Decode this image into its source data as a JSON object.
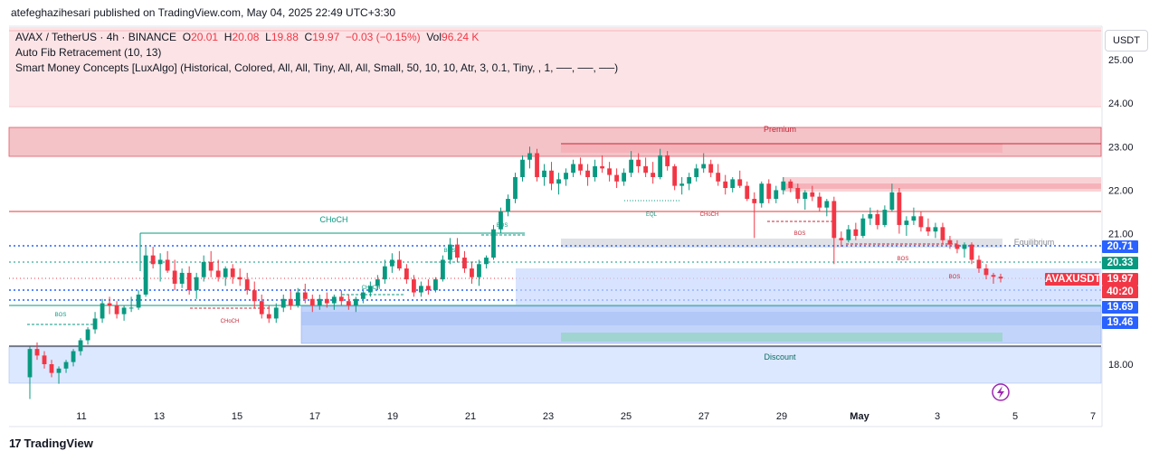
{
  "header": {
    "published": "atefeghazihesari published on TradingView.com, May 04, 2025 22:49 UTC+3:30"
  },
  "legend": {
    "symbol": "AVAX / TetherUS · 4h · BINANCE",
    "open_label": "O",
    "open": "20.01",
    "high_label": "H",
    "high": "20.08",
    "low_label": "L",
    "low": "19.88",
    "close_label": "C",
    "close": "19.97",
    "change": "−0.03 (−0.15%)",
    "vol_label": "Vol",
    "vol": "96.24 K",
    "indicator1": "Auto Fib Retracement (10, 13)",
    "indicator2": "Smart Money Concepts [LuxAlgo] (Historical, Colored, All, All, Tiny, All, All, Small, 50, 10, 10, Atr, 3, 0.1, Tiny, , 1, ──, ──, ──)"
  },
  "currency_button": "USDT",
  "footer": {
    "logo": "17",
    "brand": "TradingView"
  },
  "colors": {
    "up": "#089981",
    "down": "#f23645",
    "blue": "#2962ff",
    "teal": "#089981"
  },
  "price_tags": [
    {
      "text": "20.71",
      "color": "#2962ff"
    },
    {
      "text": "20.33",
      "color": "#089981"
    },
    {
      "text": "AVAXUSDT",
      "color": "#f23645"
    },
    {
      "text": "19.97",
      "color": "#f23645"
    },
    {
      "text": "40:20",
      "color": "#f23645"
    },
    {
      "text": "19.69",
      "color": "#2962ff"
    },
    {
      "text": "19.46",
      "color": "#2962ff"
    }
  ],
  "chart_data": {
    "type": "candlestick",
    "title": "AVAX / TetherUS · 4h · BINANCE",
    "ylim": [
      17.0,
      25.5
    ],
    "y_ticks": [
      "25.00",
      "24.00",
      "23.00",
      "22.00",
      "21.00",
      "18.00"
    ],
    "x_tick_labels": [
      "11",
      "13",
      "15",
      "17",
      "19",
      "21",
      "23",
      "25",
      "27",
      "29",
      "May",
      "3",
      "5",
      "7"
    ],
    "candles_ohlc": [
      [
        17.7,
        18.4,
        17.2,
        18.35
      ],
      [
        18.35,
        18.5,
        18.1,
        18.2
      ],
      [
        18.2,
        18.3,
        17.9,
        18.0
      ],
      [
        18.0,
        18.1,
        17.7,
        17.8
      ],
      [
        17.8,
        17.95,
        17.55,
        17.9
      ],
      [
        17.9,
        18.1,
        17.8,
        18.05
      ],
      [
        18.05,
        18.35,
        17.95,
        18.3
      ],
      [
        18.3,
        18.6,
        18.2,
        18.55
      ],
      [
        18.55,
        18.85,
        18.45,
        18.8
      ],
      [
        18.8,
        19.2,
        18.7,
        19.05
      ],
      [
        19.05,
        19.5,
        18.95,
        19.4
      ],
      [
        19.4,
        19.55,
        19.15,
        19.35
      ],
      [
        19.35,
        19.45,
        19.05,
        19.15
      ],
      [
        19.15,
        19.35,
        19.0,
        19.3
      ],
      [
        19.3,
        19.55,
        19.2,
        19.3
      ],
      [
        19.3,
        19.7,
        19.25,
        19.6
      ],
      [
        19.6,
        20.7,
        19.55,
        20.5
      ],
      [
        20.5,
        20.7,
        20.2,
        20.3
      ],
      [
        20.3,
        20.55,
        19.9,
        20.4
      ],
      [
        20.4,
        20.6,
        20.1,
        20.15
      ],
      [
        20.15,
        20.4,
        19.7,
        19.85
      ],
      [
        19.85,
        20.2,
        19.75,
        20.1
      ],
      [
        20.1,
        20.25,
        19.6,
        19.7
      ],
      [
        19.7,
        20.1,
        19.5,
        20.0
      ],
      [
        20.0,
        20.5,
        19.9,
        20.35
      ],
      [
        20.35,
        20.6,
        20.0,
        20.15
      ],
      [
        20.15,
        20.4,
        19.9,
        20.0
      ],
      [
        20.0,
        20.25,
        19.8,
        20.2
      ],
      [
        20.2,
        20.3,
        19.85,
        20.0
      ],
      [
        20.0,
        20.2,
        19.8,
        19.95
      ],
      [
        19.95,
        20.1,
        19.6,
        19.7
      ],
      [
        19.7,
        19.9,
        19.3,
        19.45
      ],
      [
        19.45,
        19.6,
        19.05,
        19.15
      ],
      [
        19.15,
        19.35,
        18.95,
        19.05
      ],
      [
        19.05,
        19.4,
        18.95,
        19.3
      ],
      [
        19.3,
        19.6,
        19.2,
        19.5
      ],
      [
        19.5,
        19.7,
        19.25,
        19.35
      ],
      [
        19.35,
        19.75,
        19.3,
        19.65
      ],
      [
        19.65,
        19.85,
        19.4,
        19.5
      ],
      [
        19.5,
        19.6,
        19.2,
        19.35
      ],
      [
        19.35,
        19.6,
        19.25,
        19.5
      ],
      [
        19.5,
        19.65,
        19.3,
        19.4
      ],
      [
        19.4,
        19.6,
        19.25,
        19.55
      ],
      [
        19.55,
        19.7,
        19.35,
        19.45
      ],
      [
        19.45,
        19.6,
        19.25,
        19.35
      ],
      [
        19.35,
        19.55,
        19.2,
        19.5
      ],
      [
        19.5,
        19.7,
        19.4,
        19.65
      ],
      [
        19.65,
        19.9,
        19.55,
        19.8
      ],
      [
        19.8,
        20.05,
        19.7,
        19.95
      ],
      [
        19.95,
        20.4,
        19.85,
        20.25
      ],
      [
        20.25,
        20.55,
        20.1,
        20.4
      ],
      [
        20.4,
        20.6,
        20.15,
        20.2
      ],
      [
        20.2,
        20.3,
        19.85,
        19.95
      ],
      [
        19.95,
        20.05,
        19.55,
        19.65
      ],
      [
        19.65,
        19.9,
        19.55,
        19.8
      ],
      [
        19.8,
        19.95,
        19.6,
        19.7
      ],
      [
        19.7,
        20.0,
        19.65,
        19.95
      ],
      [
        19.95,
        20.5,
        19.9,
        20.4
      ],
      [
        20.4,
        20.9,
        20.3,
        20.75
      ],
      [
        20.75,
        20.9,
        20.35,
        20.45
      ],
      [
        20.45,
        20.6,
        20.1,
        20.2
      ],
      [
        20.2,
        20.35,
        19.85,
        20.0
      ],
      [
        20.0,
        20.4,
        19.8,
        20.3
      ],
      [
        20.3,
        20.5,
        20.2,
        20.45
      ],
      [
        20.45,
        21.2,
        20.4,
        21.1
      ],
      [
        21.1,
        21.6,
        21.0,
        21.5
      ],
      [
        21.5,
        21.9,
        21.4,
        21.8
      ],
      [
        21.8,
        22.4,
        21.7,
        22.3
      ],
      [
        22.3,
        22.8,
        22.2,
        22.7
      ],
      [
        22.7,
        23.0,
        22.5,
        22.85
      ],
      [
        22.85,
        22.95,
        22.2,
        22.3
      ],
      [
        22.3,
        22.6,
        22.1,
        22.45
      ],
      [
        22.45,
        22.65,
        22.0,
        22.15
      ],
      [
        22.15,
        22.4,
        21.9,
        22.25
      ],
      [
        22.25,
        22.5,
        22.1,
        22.4
      ],
      [
        22.4,
        22.7,
        22.3,
        22.6
      ],
      [
        22.6,
        22.75,
        22.35,
        22.45
      ],
      [
        22.45,
        22.6,
        22.1,
        22.3
      ],
      [
        22.3,
        22.7,
        22.2,
        22.55
      ],
      [
        22.55,
        22.8,
        22.4,
        22.5
      ],
      [
        22.5,
        22.65,
        22.2,
        22.35
      ],
      [
        22.35,
        22.5,
        22.05,
        22.2
      ],
      [
        22.2,
        22.5,
        22.1,
        22.4
      ],
      [
        22.4,
        22.9,
        22.3,
        22.7
      ],
      [
        22.7,
        22.85,
        22.4,
        22.55
      ],
      [
        22.55,
        22.75,
        22.3,
        22.4
      ],
      [
        22.4,
        22.65,
        22.15,
        22.3
      ],
      [
        22.3,
        22.95,
        22.25,
        22.8
      ],
      [
        22.8,
        22.9,
        22.45,
        22.55
      ],
      [
        22.55,
        22.6,
        22.0,
        22.1
      ],
      [
        22.1,
        22.3,
        21.9,
        22.15
      ],
      [
        22.15,
        22.4,
        22.0,
        22.3
      ],
      [
        22.3,
        22.6,
        22.2,
        22.5
      ],
      [
        22.5,
        22.85,
        22.4,
        22.6
      ],
      [
        22.6,
        22.7,
        22.3,
        22.4
      ],
      [
        22.4,
        22.6,
        22.1,
        22.2
      ],
      [
        22.2,
        22.35,
        21.9,
        22.05
      ],
      [
        22.05,
        22.3,
        21.95,
        22.25
      ],
      [
        22.25,
        22.45,
        22.05,
        22.1
      ],
      [
        22.1,
        22.2,
        21.75,
        21.8
      ],
      [
        21.8,
        21.95,
        20.9,
        21.7
      ],
      [
        21.7,
        22.2,
        21.6,
        22.15
      ],
      [
        22.15,
        22.25,
        21.7,
        21.8
      ],
      [
        21.8,
        22.1,
        21.7,
        22.0
      ],
      [
        22.0,
        22.3,
        21.9,
        22.2
      ],
      [
        22.2,
        22.25,
        21.95,
        22.05
      ],
      [
        22.05,
        22.15,
        21.7,
        21.8
      ],
      [
        21.8,
        22.0,
        21.55,
        21.95
      ],
      [
        21.95,
        22.1,
        21.75,
        21.85
      ],
      [
        21.85,
        21.95,
        21.5,
        21.6
      ],
      [
        21.6,
        21.8,
        21.4,
        21.75
      ],
      [
        21.75,
        21.85,
        20.3,
        20.9
      ],
      [
        20.9,
        21.05,
        20.7,
        20.85
      ],
      [
        20.85,
        21.2,
        20.8,
        21.1
      ],
      [
        21.1,
        21.25,
        20.85,
        20.95
      ],
      [
        20.95,
        21.45,
        20.9,
        21.35
      ],
      [
        21.35,
        21.6,
        21.2,
        21.45
      ],
      [
        21.45,
        21.55,
        21.1,
        21.2
      ],
      [
        21.2,
        21.65,
        21.15,
        21.55
      ],
      [
        21.55,
        22.15,
        21.5,
        21.95
      ],
      [
        21.95,
        22.05,
        21.0,
        21.2
      ],
      [
        21.2,
        21.4,
        20.95,
        21.3
      ],
      [
        21.3,
        21.6,
        21.2,
        21.4
      ],
      [
        21.4,
        21.5,
        21.05,
        21.15
      ],
      [
        21.15,
        21.35,
        20.95,
        21.05
      ],
      [
        21.05,
        21.25,
        20.9,
        21.15
      ],
      [
        21.15,
        21.25,
        20.75,
        20.85
      ],
      [
        20.85,
        20.95,
        20.65,
        20.75
      ],
      [
        20.75,
        20.85,
        20.55,
        20.65
      ],
      [
        20.65,
        20.8,
        20.45,
        20.75
      ],
      [
        20.75,
        20.8,
        20.3,
        20.4
      ],
      [
        20.4,
        20.5,
        20.1,
        20.2
      ],
      [
        20.2,
        20.3,
        19.95,
        20.05
      ],
      [
        20.05,
        20.1,
        19.85,
        20.01
      ],
      [
        20.01,
        20.08,
        19.88,
        19.97
      ]
    ],
    "annotations": {
      "zones": [
        "Premium",
        "Equilibrium",
        "Discount"
      ],
      "structure_labels": [
        "CHoCH",
        "BOS",
        "BOS",
        "BOS",
        "CHoCH",
        "CHoCH",
        "EQL",
        "CHoCH",
        "BOS",
        "BOS",
        "BOS"
      ]
    },
    "price_tags": [
      "20.71",
      "20.33",
      "19.97",
      "19.69",
      "19.46"
    ],
    "current_price": 19.97
  }
}
